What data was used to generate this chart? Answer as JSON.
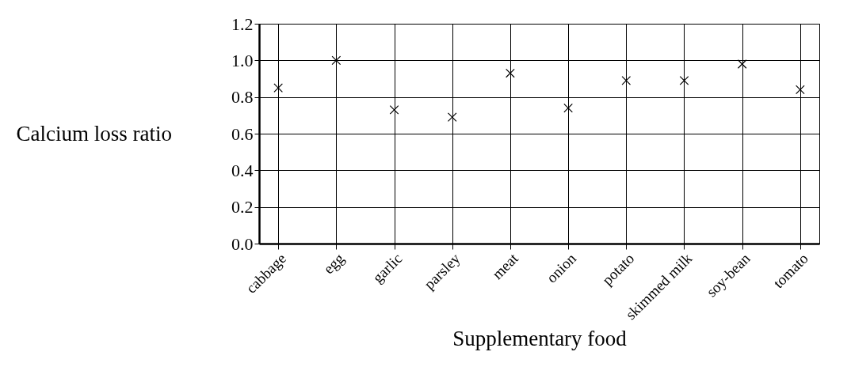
{
  "chart_data": {
    "type": "scatter",
    "xlabel": "Supplementary food",
    "ylabel": "Calcium loss ratio",
    "categories": [
      "cabbage",
      "egg",
      "garlic",
      "parsley",
      "meat",
      "onion",
      "potato",
      "skimmed milk",
      "soy-bean",
      "tomato"
    ],
    "values": [
      0.85,
      1.0,
      0.73,
      0.69,
      0.93,
      0.74,
      0.89,
      0.89,
      0.98,
      0.84
    ],
    "color": "#000000",
    "marker": "cross",
    "ylim": [
      0,
      1.2
    ],
    "yticks": [
      {
        "value": 0,
        "label": "0.0"
      },
      {
        "value": 0.2,
        "label": "0.2"
      },
      {
        "value": 0.4,
        "label": "0.4"
      },
      {
        "value": 0.6,
        "label": "0.6"
      },
      {
        "value": 0.8,
        "label": "0.8"
      },
      {
        "value": 1,
        "label": "1.0"
      },
      {
        "value": 1.2,
        "label": "1.2"
      }
    ],
    "grid": true
  }
}
